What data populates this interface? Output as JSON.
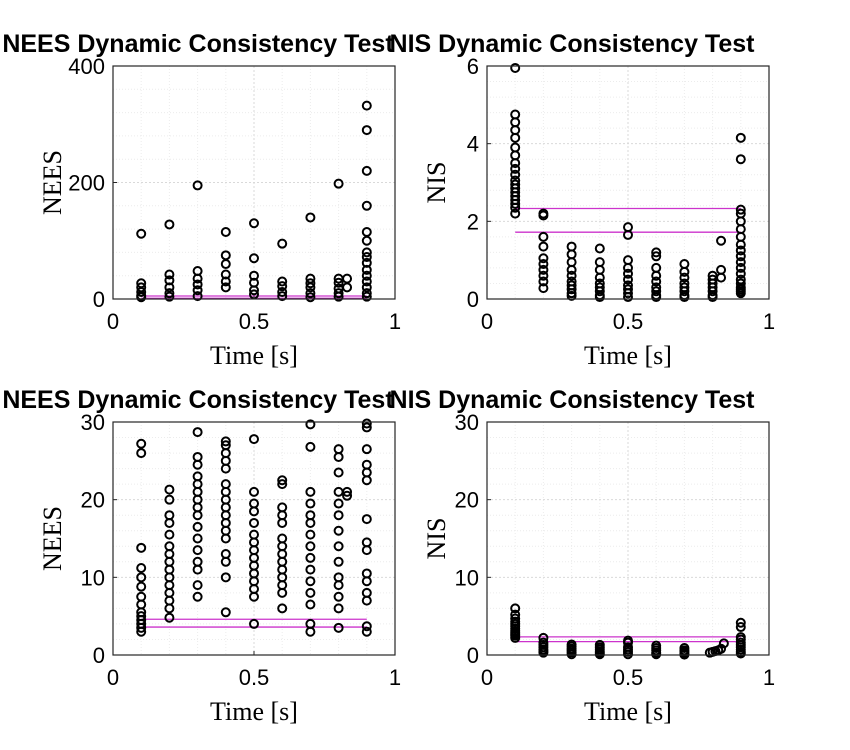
{
  "chart_data": [
    {
      "type": "scatter",
      "title": "NEES Dynamic Consistency Test",
      "xlabel": "Time [s]",
      "ylabel": "NEES",
      "xlim": [
        0,
        1
      ],
      "ylim": [
        0,
        400
      ],
      "xticks": [
        0,
        0.5,
        1
      ],
      "xtick_labels": [
        "0",
        "0.5",
        "1"
      ],
      "yticks": [
        0,
        200,
        400
      ],
      "ytick_labels": [
        "0",
        "200",
        "400"
      ],
      "grid": true,
      "bounds": [
        1.2,
        5.2
      ],
      "series": [
        {
          "x": [
            0.1,
            0.1,
            0.1,
            0.1,
            0.1,
            0.1,
            0.2,
            0.2,
            0.2,
            0.2,
            0.2,
            0.2,
            0.3,
            0.3,
            0.3,
            0.3,
            0.3,
            0.3,
            0.4,
            0.4,
            0.4,
            0.4,
            0.4,
            0.4,
            0.5,
            0.5,
            0.5,
            0.5,
            0.5,
            0.5,
            0.6,
            0.6,
            0.6,
            0.6,
            0.6,
            0.7,
            0.7,
            0.7,
            0.7,
            0.7,
            0.7,
            0.8,
            0.8,
            0.8,
            0.8,
            0.8,
            0.8,
            0.83,
            0.83,
            0.9,
            0.9,
            0.9,
            0.9,
            0.9,
            0.9,
            0.9,
            0.9,
            0.9,
            0.9,
            0.9,
            0.9,
            0.9,
            0.9,
            0.9
          ],
          "y": [
            112,
            27,
            20,
            12,
            6,
            3,
            128,
            42,
            32,
            20,
            10,
            4,
            195,
            48,
            35,
            25,
            15,
            5,
            115,
            75,
            60,
            42,
            30,
            20,
            130,
            70,
            40,
            28,
            15,
            8,
            95,
            30,
            22,
            12,
            5,
            140,
            35,
            27,
            20,
            10,
            3,
            198,
            35,
            28,
            18,
            10,
            4,
            35,
            20,
            332,
            290,
            220,
            160,
            115,
            100,
            80,
            72,
            62,
            50,
            40,
            30,
            20,
            10,
            4
          ]
        }
      ]
    },
    {
      "type": "scatter",
      "title": "NIS Dynamic Consistency Test",
      "xlabel": "Time [s]",
      "ylabel": "NIS",
      "xlim": [
        0,
        1
      ],
      "ylim": [
        0,
        6
      ],
      "xticks": [
        0,
        0.5,
        1
      ],
      "xtick_labels": [
        "0",
        "0.5",
        "1"
      ],
      "yticks": [
        0,
        2,
        4,
        6
      ],
      "ytick_labels": [
        "0",
        "2",
        "4",
        "6"
      ],
      "grid": true,
      "bounds": [
        1.72,
        2.33
      ],
      "series": [
        {
          "x": [
            0.1,
            0.1,
            0.1,
            0.1,
            0.1,
            0.1,
            0.1,
            0.1,
            0.1,
            0.1,
            0.1,
            0.1,
            0.1,
            0.1,
            0.1,
            0.1,
            0.1,
            0.1,
            0.1,
            0.2,
            0.2,
            0.2,
            0.2,
            0.2,
            0.2,
            0.2,
            0.2,
            0.2,
            0.2,
            0.3,
            0.3,
            0.3,
            0.3,
            0.3,
            0.3,
            0.3,
            0.3,
            0.3,
            0.3,
            0.4,
            0.4,
            0.4,
            0.4,
            0.4,
            0.4,
            0.4,
            0.4,
            0.4,
            0.5,
            0.5,
            0.5,
            0.5,
            0.5,
            0.5,
            0.5,
            0.5,
            0.5,
            0.5,
            0.6,
            0.6,
            0.6,
            0.6,
            0.6,
            0.6,
            0.6,
            0.6,
            0.6,
            0.7,
            0.7,
            0.7,
            0.7,
            0.7,
            0.7,
            0.7,
            0.7,
            0.8,
            0.8,
            0.8,
            0.8,
            0.8,
            0.8,
            0.8,
            0.83,
            0.83,
            0.83,
            0.9,
            0.9,
            0.9,
            0.9,
            0.9,
            0.9,
            0.9,
            0.9,
            0.9,
            0.9,
            0.9,
            0.9,
            0.9,
            0.9,
            0.9,
            0.9,
            0.9,
            0.9,
            0.9
          ],
          "y": [
            5.95,
            4.75,
            4.55,
            4.35,
            4.15,
            3.9,
            3.7,
            3.5,
            3.35,
            3.2,
            3.05,
            2.95,
            2.85,
            2.75,
            2.65,
            2.55,
            2.45,
            2.35,
            2.2,
            2.2,
            2.15,
            1.6,
            1.35,
            1.05,
            0.9,
            0.75,
            0.6,
            0.45,
            0.28,
            1.35,
            1.15,
            0.95,
            0.75,
            0.6,
            0.45,
            0.35,
            0.25,
            0.15,
            0.08,
            1.3,
            0.95,
            0.75,
            0.55,
            0.4,
            0.3,
            0.2,
            0.1,
            0.05,
            1.85,
            1.65,
            1.0,
            0.8,
            0.65,
            0.5,
            0.35,
            0.25,
            0.15,
            0.05,
            1.2,
            1.1,
            0.8,
            0.6,
            0.45,
            0.3,
            0.2,
            0.1,
            0.05,
            0.9,
            0.7,
            0.55,
            0.4,
            0.3,
            0.2,
            0.1,
            0.05,
            0.6,
            0.5,
            0.4,
            0.3,
            0.2,
            0.1,
            0.05,
            1.5,
            0.75,
            0.55,
            4.15,
            3.6,
            2.3,
            2.2,
            2.0,
            1.8,
            1.6,
            1.4,
            1.25,
            1.1,
            0.95,
            0.8,
            0.65,
            0.5,
            0.4,
            0.3,
            0.25,
            0.2,
            0.15
          ]
        }
      ]
    },
    {
      "type": "scatter",
      "title": "NEES Dynamic Consistency Test",
      "xlabel": "Time [s]",
      "ylabel": "NEES",
      "xlim": [
        0,
        1
      ],
      "ylim": [
        0,
        30
      ],
      "xticks": [
        0,
        0.5,
        1
      ],
      "xtick_labels": [
        "0",
        "0.5",
        "1"
      ],
      "yticks": [
        0,
        10,
        20,
        30
      ],
      "ytick_labels": [
        "0",
        "10",
        "20",
        "30"
      ],
      "grid": true,
      "bounds": [
        3.6,
        4.6
      ],
      "series": [
        {
          "x": [
            0.1,
            0.1,
            0.1,
            0.1,
            0.1,
            0.1,
            0.1,
            0.1,
            0.1,
            0.1,
            0.1,
            0.1,
            0.1,
            0.1,
            0.2,
            0.2,
            0.2,
            0.2,
            0.2,
            0.2,
            0.2,
            0.2,
            0.2,
            0.2,
            0.2,
            0.2,
            0.2,
            0.2,
            0.2,
            0.3,
            0.3,
            0.3,
            0.3,
            0.3,
            0.3,
            0.3,
            0.3,
            0.3,
            0.3,
            0.3,
            0.3,
            0.3,
            0.3,
            0.3,
            0.3,
            0.4,
            0.4,
            0.4,
            0.4,
            0.4,
            0.4,
            0.4,
            0.4,
            0.4,
            0.4,
            0.4,
            0.4,
            0.4,
            0.4,
            0.4,
            0.4,
            0.4,
            0.5,
            0.5,
            0.5,
            0.5,
            0.5,
            0.5,
            0.5,
            0.5,
            0.5,
            0.5,
            0.5,
            0.5,
            0.5,
            0.5,
            0.5,
            0.6,
            0.6,
            0.6,
            0.6,
            0.6,
            0.6,
            0.6,
            0.6,
            0.6,
            0.6,
            0.6,
            0.6,
            0.6,
            0.6,
            0.7,
            0.7,
            0.7,
            0.7,
            0.7,
            0.7,
            0.7,
            0.7,
            0.7,
            0.7,
            0.7,
            0.7,
            0.7,
            0.7,
            0.7,
            0.8,
            0.8,
            0.8,
            0.8,
            0.8,
            0.8,
            0.8,
            0.8,
            0.8,
            0.8,
            0.8,
            0.8,
            0.8,
            0.8,
            0.83,
            0.83,
            0.9,
            0.9,
            0.9,
            0.9,
            0.9,
            0.9,
            0.9,
            0.9,
            0.9,
            0.9,
            0.9,
            0.9,
            0.9,
            0.9,
            0.9
          ],
          "y": [
            27.2,
            26,
            13.8,
            11.2,
            10,
            8.8,
            7.5,
            6.5,
            5.5,
            5,
            4.5,
            4,
            3.5,
            3,
            21.3,
            20,
            18,
            17,
            15.5,
            14,
            13,
            12,
            11,
            10,
            9,
            8,
            7,
            6,
            4.8,
            28.7,
            25.5,
            24.5,
            23,
            22,
            21,
            20,
            19,
            18,
            16.5,
            15,
            13.5,
            12,
            11,
            9,
            7.5,
            27.5,
            27,
            26,
            25,
            24,
            22,
            21,
            20,
            19,
            18,
            17,
            16,
            15,
            13,
            12,
            10,
            5.5,
            27.8,
            21,
            19.5,
            18.5,
            17,
            15.5,
            14.5,
            13.5,
            12.5,
            11.5,
            10.5,
            9.5,
            8.5,
            7.5,
            4,
            22.5,
            22,
            19,
            18,
            17,
            15,
            14,
            13,
            12,
            11,
            10,
            9,
            8,
            6,
            29.7,
            26.8,
            21,
            19.5,
            18,
            17,
            15.5,
            14,
            12.5,
            11,
            9.5,
            8,
            6.5,
            4,
            3,
            26.5,
            25.5,
            23.5,
            21,
            19.5,
            18,
            16,
            14,
            12,
            10,
            9,
            7.5,
            6,
            3.5,
            21,
            20.5,
            29.8,
            29.3,
            26.5,
            24.5,
            23.5,
            22.5,
            17.5,
            14.5,
            13.5,
            10.5,
            9.5,
            8,
            7,
            3.7,
            3
          ]
        }
      ]
    },
    {
      "type": "scatter",
      "title": "NIS Dynamic Consistency Test",
      "xlabel": "Time [s]",
      "ylabel": "NIS",
      "xlim": [
        0,
        1
      ],
      "ylim": [
        0,
        30
      ],
      "xticks": [
        0,
        0.5,
        1
      ],
      "xtick_labels": [
        "0",
        "0.5",
        "1"
      ],
      "yticks": [
        0,
        10,
        20,
        30
      ],
      "ytick_labels": [
        "0",
        "10",
        "20",
        "30"
      ],
      "grid": true,
      "bounds": [
        1.72,
        2.33
      ],
      "series": [
        {
          "x": [
            0.1,
            0.1,
            0.1,
            0.1,
            0.1,
            0.1,
            0.1,
            0.1,
            0.1,
            0.1,
            0.1,
            0.1,
            0.2,
            0.2,
            0.2,
            0.2,
            0.2,
            0.2,
            0.2,
            0.3,
            0.3,
            0.3,
            0.3,
            0.3,
            0.3,
            0.4,
            0.4,
            0.4,
            0.4,
            0.4,
            0.4,
            0.5,
            0.5,
            0.5,
            0.5,
            0.5,
            0.5,
            0.6,
            0.6,
            0.6,
            0.6,
            0.6,
            0.7,
            0.7,
            0.7,
            0.7,
            0.7,
            0.79,
            0.8,
            0.81,
            0.82,
            0.83,
            0.84,
            0.9,
            0.9,
            0.9,
            0.9,
            0.9,
            0.9,
            0.9,
            0.9,
            0.9,
            0.9
          ],
          "y": [
            6,
            5.2,
            4.7,
            4.3,
            4,
            3.7,
            3.4,
            3.1,
            2.9,
            2.7,
            2.5,
            2.2,
            2.2,
            1.6,
            1.3,
            1,
            0.7,
            0.5,
            0.3,
            1.35,
            1.1,
            0.8,
            0.6,
            0.35,
            0.1,
            1.3,
            1,
            0.75,
            0.5,
            0.3,
            0.1,
            1.85,
            1.6,
            1,
            0.7,
            0.4,
            0.1,
            1.2,
            0.9,
            0.6,
            0.3,
            0.1,
            0.9,
            0.6,
            0.4,
            0.2,
            0.05,
            0.3,
            0.4,
            0.5,
            0.6,
            0.8,
            1.5,
            4.15,
            3.6,
            2.3,
            2,
            1.6,
            1.3,
            1,
            0.7,
            0.4,
            0.2
          ]
        }
      ]
    }
  ]
}
